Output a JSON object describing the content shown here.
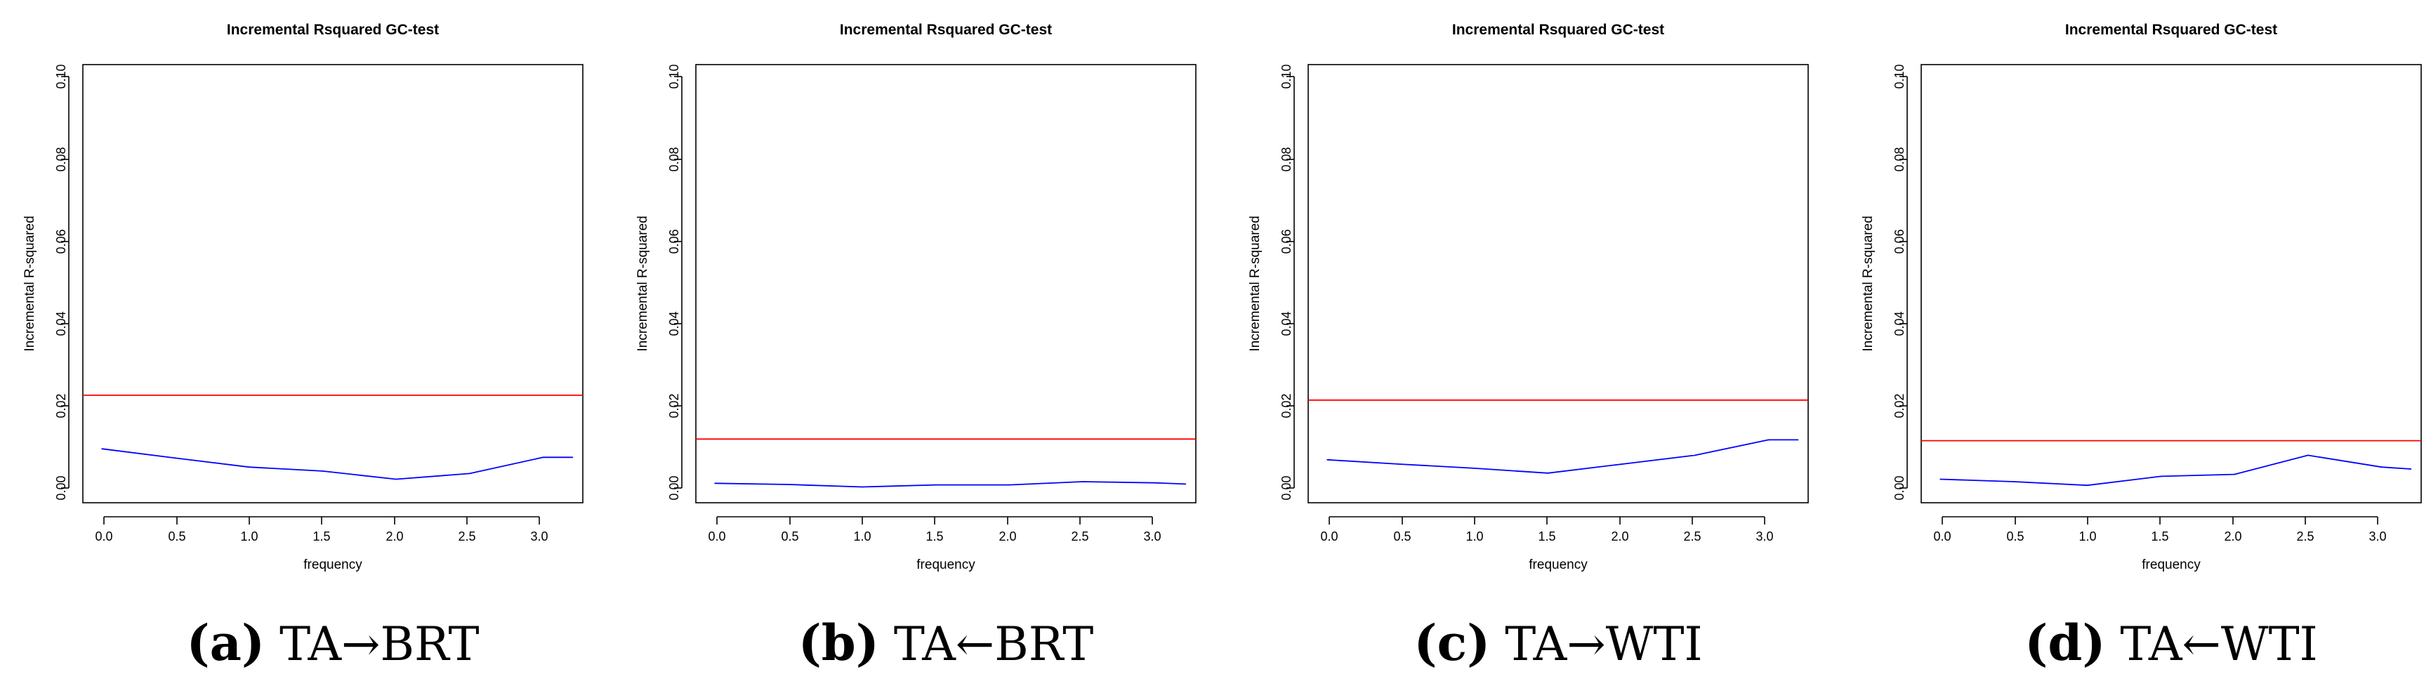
{
  "chart_data": [
    {
      "type": "line",
      "title": "Incremental Rsquared GC-test",
      "xlabel": "frequency",
      "ylabel": "Incremental R-squared",
      "xlim": [
        -0.13,
        3.27
      ],
      "ylim": [
        -0.004,
        0.104
      ],
      "xticks": [
        "0.0",
        "0.5",
        "1.0",
        "1.5",
        "2.0",
        "2.5",
        "3.0"
      ],
      "yticks": [
        "0.00",
        "0.02",
        "0.04",
        "0.06",
        "0.08",
        "0.10"
      ],
      "threshold": 0.0225,
      "series": [
        {
          "name": "incremental R-squared",
          "x": [
            0.0,
            0.5,
            1.0,
            1.5,
            2.0,
            2.5,
            3.0,
            3.2
          ],
          "values": [
            0.0093,
            0.007,
            0.0048,
            0.0038,
            0.0018,
            0.0032,
            0.0072,
            0.0072
          ]
        }
      ],
      "caption_letter": "(a)",
      "caption_text": "TA→BRT"
    },
    {
      "type": "line",
      "title": "Incremental Rsquared GC-test",
      "xlabel": "frequency",
      "ylabel": "Incremental R-squared",
      "xlim": [
        -0.13,
        3.27
      ],
      "ylim": [
        -0.004,
        0.104
      ],
      "xticks": [
        "0.0",
        "0.5",
        "1.0",
        "1.5",
        "2.0",
        "2.5",
        "3.0"
      ],
      "yticks": [
        "0.00",
        "0.02",
        "0.04",
        "0.06",
        "0.08",
        "0.10"
      ],
      "threshold": 0.0117,
      "series": [
        {
          "name": "incremental R-squared",
          "x": [
            0.0,
            0.5,
            1.0,
            1.5,
            2.0,
            2.5,
            3.0,
            3.2
          ],
          "values": [
            0.0008,
            0.0005,
            -0.0001,
            0.0004,
            0.0004,
            0.0012,
            0.0009,
            0.0006
          ]
        }
      ],
      "caption_letter": "(b)",
      "caption_text": "TA←BRT"
    },
    {
      "type": "line",
      "title": "Incremental Rsquared GC-test",
      "xlabel": "frequency",
      "ylabel": "Incremental R-squared",
      "xlim": [
        -0.13,
        3.27
      ],
      "ylim": [
        -0.004,
        0.104
      ],
      "xticks": [
        "0.0",
        "0.5",
        "1.0",
        "1.5",
        "2.0",
        "2.5",
        "3.0"
      ],
      "yticks": [
        "0.00",
        "0.02",
        "0.04",
        "0.06",
        "0.08",
        "0.10"
      ],
      "threshold": 0.0213,
      "series": [
        {
          "name": "incremental R-squared",
          "x": [
            0.0,
            0.5,
            1.0,
            1.5,
            2.0,
            2.5,
            3.0,
            3.2
          ],
          "values": [
            0.0066,
            0.0055,
            0.0045,
            0.0033,
            0.0055,
            0.0077,
            0.0115,
            0.0115
          ]
        }
      ],
      "caption_letter": "(c)",
      "caption_text": "TA→WTI"
    },
    {
      "type": "line",
      "title": "Incremental Rsquared GC-test",
      "xlabel": "frequency",
      "ylabel": "Incremental R-squared",
      "xlim": [
        -0.13,
        3.27
      ],
      "ylim": [
        -0.004,
        0.104
      ],
      "xticks": [
        "0.0",
        "0.5",
        "1.0",
        "1.5",
        "2.0",
        "2.5",
        "3.0"
      ],
      "yticks": [
        "0.00",
        "0.02",
        "0.04",
        "0.06",
        "0.08",
        "0.10"
      ],
      "threshold": 0.0113,
      "series": [
        {
          "name": "incremental R-squared",
          "x": [
            0.0,
            0.5,
            1.0,
            1.5,
            2.0,
            2.5,
            3.0,
            3.2
          ],
          "values": [
            0.0018,
            0.0012,
            0.0003,
            0.0025,
            0.003,
            0.0077,
            0.0048,
            0.0043
          ]
        }
      ],
      "caption_letter": "(d)",
      "caption_text": "TA←WTI"
    }
  ],
  "colors": {
    "series_line": "#0000ff",
    "threshold_line": "#ff0000",
    "axis": "#000000"
  }
}
